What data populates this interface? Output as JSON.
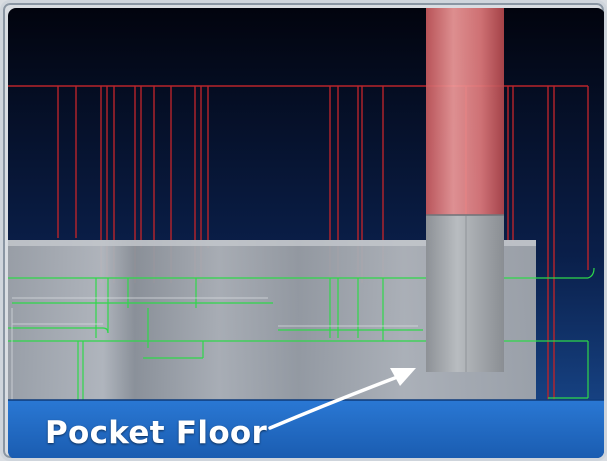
{
  "callout": {
    "label": "Pocket Floor"
  },
  "colors": {
    "background_top": "#02040e",
    "background_bottom": "#1b4f98",
    "caption_band": "#1f67c0",
    "part_body": "#a8adb4",
    "tool_holder": "#e27878",
    "tool_cutter": "#a5a9ad",
    "wire_red": "#b8242b",
    "wire_green": "#2ed84a",
    "arrow": "#ffffff"
  },
  "icons": {
    "callout_arrow": "arrow-pointer-icon"
  }
}
